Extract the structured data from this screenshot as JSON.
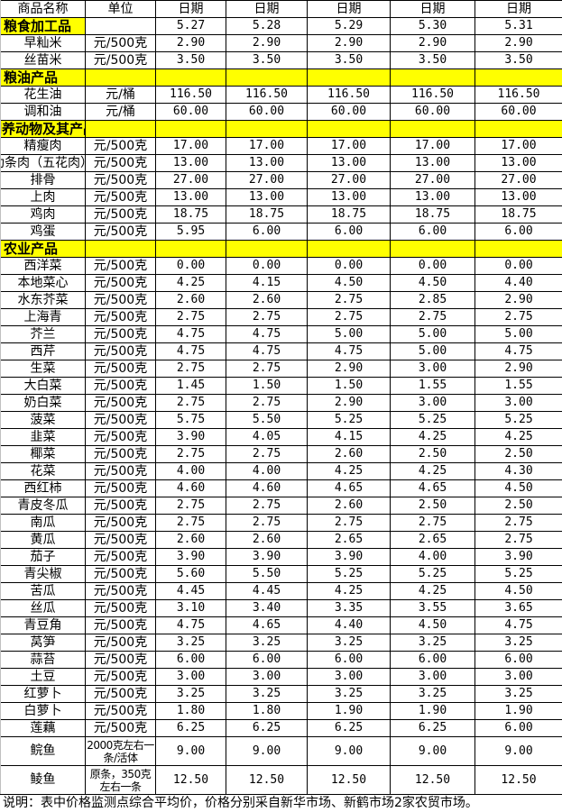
{
  "header": {
    "name": "商品名称",
    "unit": "单位",
    "date_label": "日期"
  },
  "dates": [
    "5.27",
    "5.28",
    "5.29",
    "5.30",
    "5.31"
  ],
  "sections": [
    {
      "category": "粮食加工品",
      "items": [
        {
          "name": "早籼米",
          "unit": "元/500克",
          "prices": [
            "2.90",
            "2.90",
            "2.90",
            "2.90",
            "2.90"
          ]
        },
        {
          "name": "丝苗米",
          "unit": "元/500克",
          "prices": [
            "3.50",
            "3.50",
            "3.50",
            "3.50",
            "3.50"
          ]
        }
      ]
    },
    {
      "category": "粮油产品",
      "items": [
        {
          "name": "花生油",
          "unit": "元/桶",
          "prices": [
            "116.50",
            "116.50",
            "116.50",
            "116.50",
            "116.50"
          ]
        },
        {
          "name": "调和油",
          "unit": "元/桶",
          "prices": [
            "60.00",
            "60.00",
            "60.00",
            "60.00",
            "60.00"
          ]
        }
      ]
    },
    {
      "category": "饲养动物及其产品",
      "items": [
        {
          "name": "精瘦肉",
          "unit": "元/500克",
          "prices": [
            "17.00",
            "17.00",
            "17.00",
            "17.00",
            "17.00"
          ]
        },
        {
          "name": "肋条肉（五花肉）",
          "unit": "元/500克",
          "prices": [
            "13.00",
            "13.00",
            "13.00",
            "13.00",
            "13.00"
          ]
        },
        {
          "name": "排骨",
          "unit": "元/500克",
          "prices": [
            "27.00",
            "27.00",
            "27.00",
            "27.00",
            "27.00"
          ]
        },
        {
          "name": "上肉",
          "unit": "元/500克",
          "prices": [
            "13.00",
            "13.00",
            "13.00",
            "13.00",
            "13.00"
          ]
        },
        {
          "name": "鸡肉",
          "unit": "元/500克",
          "prices": [
            "18.75",
            "18.75",
            "18.75",
            "18.75",
            "18.75"
          ]
        },
        {
          "name": "鸡蛋",
          "unit": "元/500克",
          "prices": [
            "5.95",
            "6.00",
            "6.00",
            "6.00",
            "6.00"
          ]
        }
      ]
    },
    {
      "category": "农业产品",
      "items": [
        {
          "name": "西洋菜",
          "unit": "元/500克",
          "prices": [
            "0.00",
            "0.00",
            "0.00",
            "0.00",
            "0.00"
          ]
        },
        {
          "name": "本地菜心",
          "unit": "元/500克",
          "prices": [
            "4.25",
            "4.15",
            "4.50",
            "4.50",
            "4.40"
          ]
        },
        {
          "name": "水东芥菜",
          "unit": "元/500克",
          "prices": [
            "2.60",
            "2.60",
            "2.75",
            "2.85",
            "2.90"
          ]
        },
        {
          "name": "上海青",
          "unit": "元/500克",
          "prices": [
            "2.75",
            "2.75",
            "2.75",
            "2.75",
            "2.75"
          ]
        },
        {
          "name": "芥兰",
          "unit": "元/500克",
          "prices": [
            "4.75",
            "4.75",
            "5.00",
            "5.00",
            "5.00"
          ]
        },
        {
          "name": "西芹",
          "unit": "元/500克",
          "prices": [
            "4.75",
            "4.75",
            "4.75",
            "5.00",
            "4.75"
          ]
        },
        {
          "name": "生菜",
          "unit": "元/500克",
          "prices": [
            "2.75",
            "2.75",
            "2.90",
            "3.00",
            "2.90"
          ]
        },
        {
          "name": "大白菜",
          "unit": "元/500克",
          "prices": [
            "1.45",
            "1.50",
            "1.50",
            "1.55",
            "1.55"
          ]
        },
        {
          "name": "奶白菜",
          "unit": "元/500克",
          "prices": [
            "2.75",
            "2.75",
            "2.90",
            "3.00",
            "3.00"
          ]
        },
        {
          "name": "菠菜",
          "unit": "元/500克",
          "prices": [
            "5.75",
            "5.50",
            "5.25",
            "5.25",
            "5.25"
          ]
        },
        {
          "name": "韭菜",
          "unit": "元/500克",
          "prices": [
            "3.90",
            "4.05",
            "4.15",
            "4.25",
            "4.25"
          ]
        },
        {
          "name": "椰菜",
          "unit": "元/500克",
          "prices": [
            "2.75",
            "2.75",
            "2.60",
            "2.50",
            "2.50"
          ]
        },
        {
          "name": "花菜",
          "unit": "元/500克",
          "prices": [
            "4.00",
            "4.00",
            "4.25",
            "4.25",
            "4.30"
          ]
        },
        {
          "name": "西红柿",
          "unit": "元/500克",
          "prices": [
            "4.60",
            "4.60",
            "4.65",
            "4.65",
            "4.50"
          ]
        },
        {
          "name": "青皮冬瓜",
          "unit": "元/500克",
          "prices": [
            "2.75",
            "2.75",
            "2.60",
            "2.50",
            "2.50"
          ]
        },
        {
          "name": "南瓜",
          "unit": "元/500克",
          "prices": [
            "2.75",
            "2.75",
            "2.75",
            "2.75",
            "2.75"
          ]
        },
        {
          "name": "黄瓜",
          "unit": "元/500克",
          "prices": [
            "2.60",
            "2.60",
            "2.65",
            "2.65",
            "2.75"
          ]
        },
        {
          "name": "茄子",
          "unit": "元/500克",
          "prices": [
            "3.90",
            "3.90",
            "3.90",
            "4.00",
            "3.90"
          ]
        },
        {
          "name": "青尖椒",
          "unit": "元/500克",
          "prices": [
            "5.60",
            "5.50",
            "5.25",
            "5.25",
            "5.25"
          ]
        },
        {
          "name": "苦瓜",
          "unit": "元/500克",
          "prices": [
            "4.45",
            "4.45",
            "4.25",
            "4.25",
            "4.50"
          ]
        },
        {
          "name": "丝瓜",
          "unit": "元/500克",
          "prices": [
            "3.10",
            "3.40",
            "3.35",
            "3.55",
            "3.65"
          ]
        },
        {
          "name": "青豆角",
          "unit": "元/500克",
          "prices": [
            "4.75",
            "4.65",
            "4.40",
            "4.50",
            "4.75"
          ]
        },
        {
          "name": "莴笋",
          "unit": "元/500克",
          "prices": [
            "3.25",
            "3.25",
            "3.25",
            "3.25",
            "3.25"
          ]
        },
        {
          "name": "蒜苔",
          "unit": "元/500克",
          "prices": [
            "6.00",
            "6.00",
            "6.00",
            "6.00",
            "6.00"
          ]
        },
        {
          "name": "土豆",
          "unit": "元/500克",
          "prices": [
            "3.00",
            "3.00",
            "3.00",
            "3.00",
            "3.00"
          ]
        },
        {
          "name": "红萝卜",
          "unit": "元/500克",
          "prices": [
            "3.25",
            "3.25",
            "3.25",
            "3.25",
            "3.25"
          ]
        },
        {
          "name": "白萝卜",
          "unit": "元/500克",
          "prices": [
            "1.80",
            "1.80",
            "1.90",
            "1.90",
            "1.90"
          ]
        },
        {
          "name": "莲藕",
          "unit": "元/500克",
          "prices": [
            "6.25",
            "6.25",
            "6.25",
            "6.25",
            "6.00"
          ]
        },
        {
          "name": "鲩鱼",
          "unit": "2000克左右一条/活体",
          "prices": [
            "9.00",
            "9.00",
            "9.00",
            "9.00",
            "9.00"
          ],
          "tall": true
        },
        {
          "name": "鲮鱼",
          "unit": "原条，350克左右一条",
          "prices": [
            "12.50",
            "12.50",
            "12.50",
            "12.50",
            "12.50"
          ],
          "tall": true
        }
      ]
    }
  ],
  "footer": "说明：表中价格监测点综合平均价，价格分别采自新华市场、新鹤市场2家农贸市场。",
  "colors": {
    "category_fill": "#ffff00",
    "grid": "#000000"
  }
}
